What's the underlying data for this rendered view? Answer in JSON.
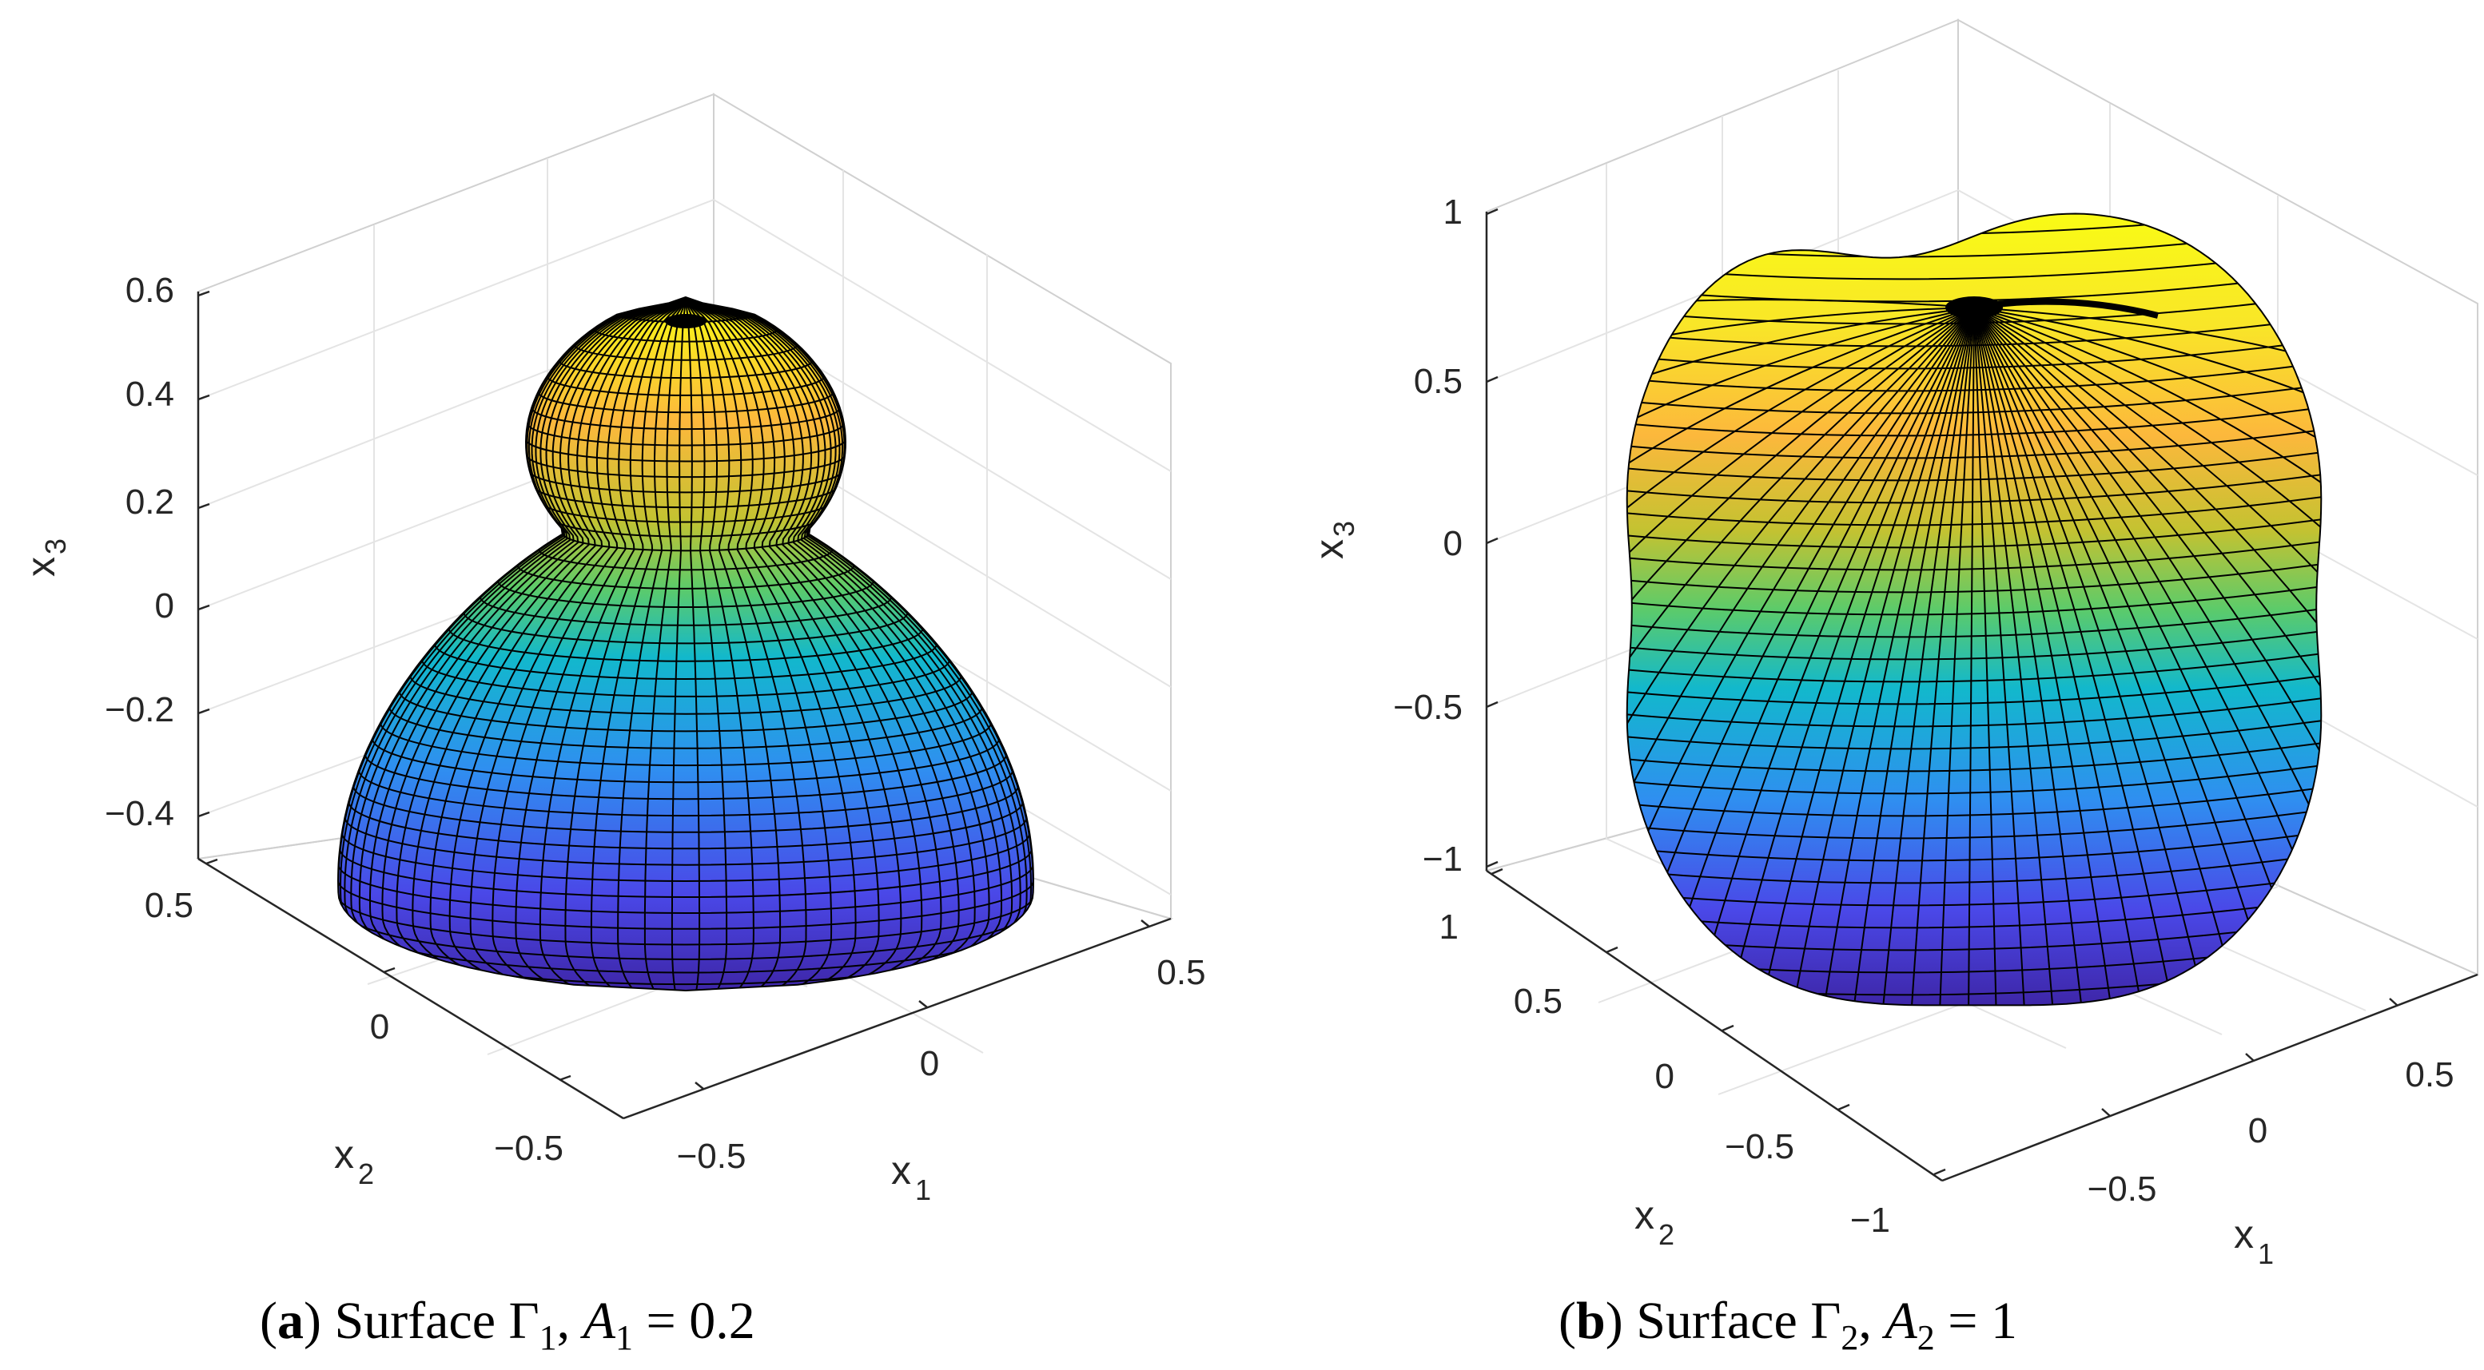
{
  "chart_data": [
    {
      "type": "surface3d",
      "panel_label": "a",
      "caption_text": "Surface",
      "surface_symbol": "Γ",
      "surface_index": "1",
      "param_symbol": "A",
      "param_index": "1",
      "param_value": "= 0.2",
      "xlabel": "x",
      "xlabel_sub": "1",
      "ylabel": "x",
      "ylabel_sub": "2",
      "zlabel": "x",
      "zlabel_sub": "3",
      "x_ticks": [
        "−0.5",
        "0",
        "0.5"
      ],
      "y_ticks": [
        "−0.5",
        "0",
        "0.5"
      ],
      "z_ticks": [
        "−0.4",
        "−0.2",
        "0",
        "0.2",
        "0.4",
        "0.6"
      ],
      "xlim": [
        -0.6,
        0.6
      ],
      "ylim": [
        -0.6,
        0.6
      ],
      "zlim": [
        -0.5,
        0.6
      ],
      "colormap": [
        "#3e26a8",
        "#2f6ff0",
        "#12b8cc",
        "#5ccb6a",
        "#c4c231",
        "#fcb83c",
        "#f9fb15"
      ],
      "mesh_color": "#000000"
    },
    {
      "type": "surface3d",
      "panel_label": "b",
      "caption_text": "Surface",
      "surface_symbol": "Γ",
      "surface_index": "2",
      "param_symbol": "A",
      "param_index": "2",
      "param_value": "= 1",
      "xlabel": "x",
      "xlabel_sub": "1",
      "ylabel": "x",
      "ylabel_sub": "2",
      "zlabel": "x",
      "zlabel_sub": "3",
      "x_ticks": [
        "−0.5",
        "0",
        "0.5"
      ],
      "y_ticks": [
        "−1",
        "−0.5",
        "0",
        "0.5",
        "1"
      ],
      "z_ticks": [
        "−1",
        "−0.5",
        "0",
        "0.5",
        "1"
      ],
      "xlim": [
        -0.8,
        0.8
      ],
      "ylim": [
        -1.1,
        1.1
      ],
      "zlim": [
        -1.05,
        1.05
      ],
      "colormap": [
        "#3e26a8",
        "#2f6ff0",
        "#12b8cc",
        "#5ccb6a",
        "#c4c231",
        "#fcb83c",
        "#f9fb15"
      ],
      "mesh_color": "#000000"
    }
  ]
}
